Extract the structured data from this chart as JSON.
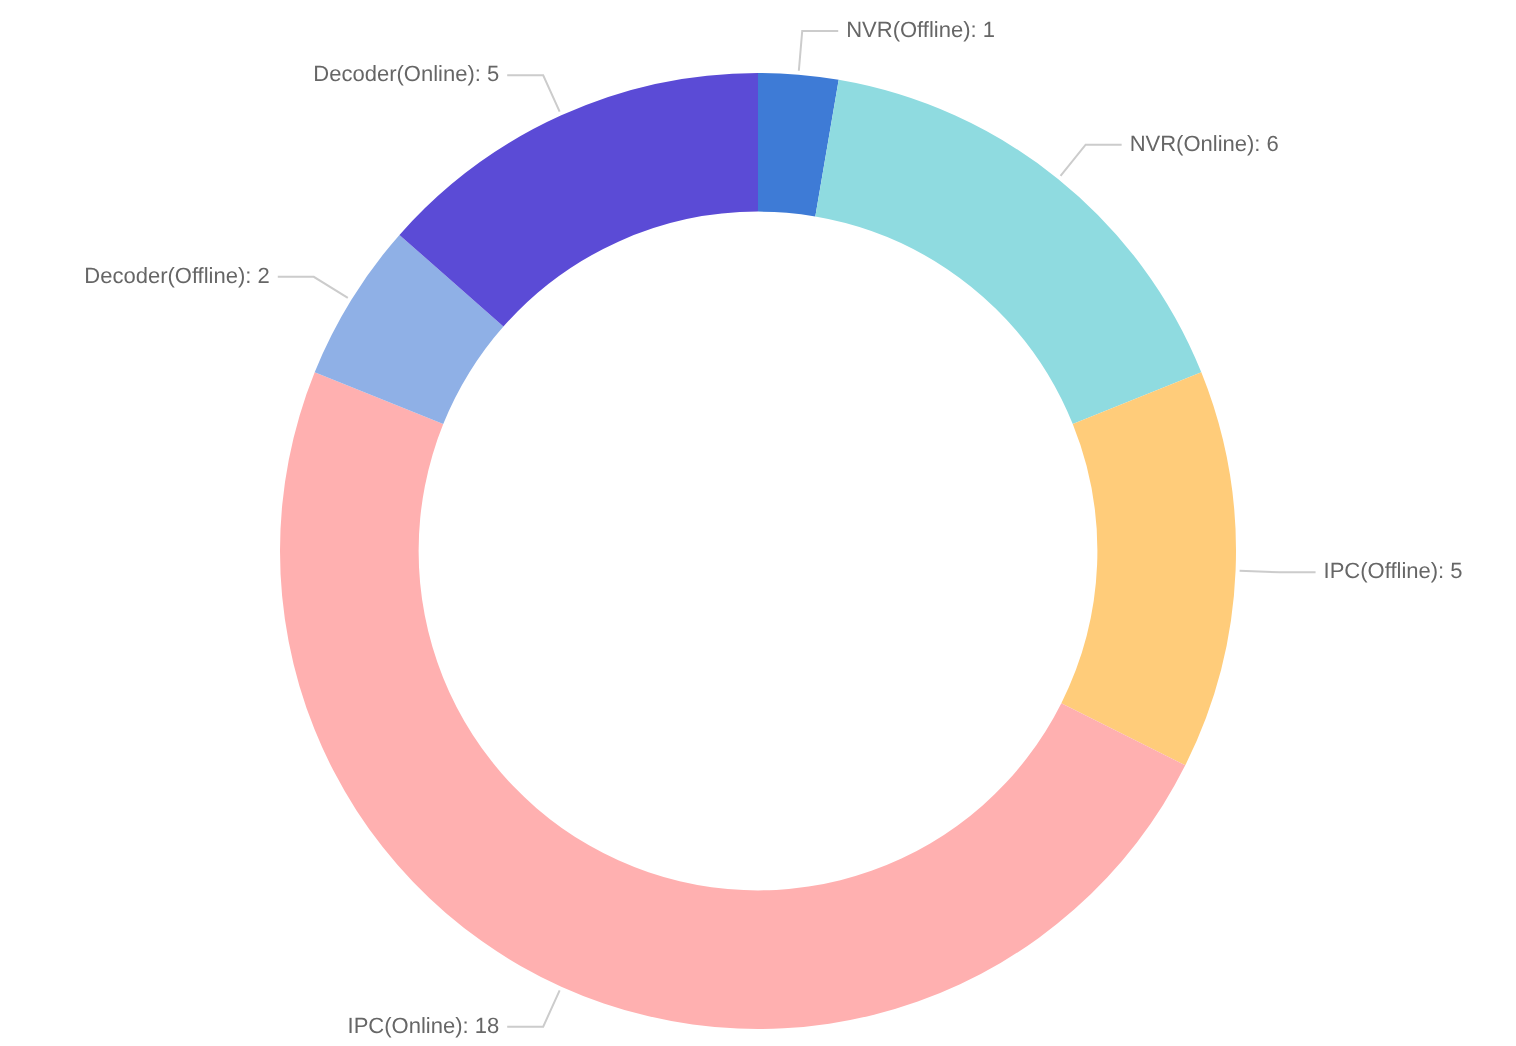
{
  "chart_data": {
    "type": "donut",
    "categories": [
      "NVR(Offline): 1",
      "NVR(Online): 6",
      "IPC(Offline): 5",
      "IPC(Online): 18",
      "Decoder(Offline): 2",
      "Decoder(Online): 5"
    ],
    "values": [
      2.7,
      16.2,
      13.5,
      48.7,
      5.4,
      13.5
    ],
    "colors": [
      "#3e7bd6",
      "#8fdbe0",
      "#ffcc7a",
      "#ffb0b0",
      "#8fb0e6",
      "#5b4bd6"
    ]
  }
}
